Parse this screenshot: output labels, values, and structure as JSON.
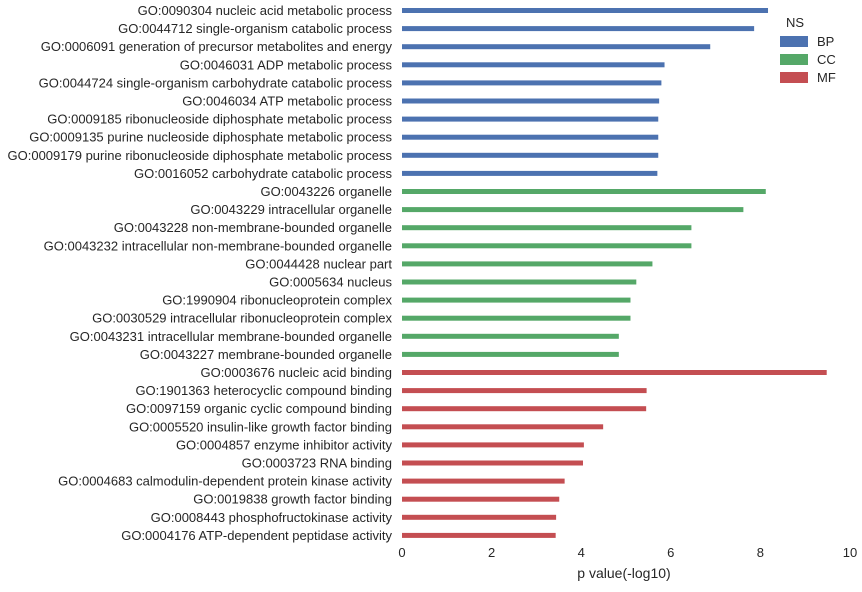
{
  "chart_data": {
    "type": "bar",
    "orientation": "horizontal",
    "xlabel": "p value(-log10)",
    "xlim": [
      0,
      10
    ],
    "xticks": [
      0,
      2,
      4,
      6,
      8,
      10
    ],
    "grid": false,
    "legend": {
      "title": "NS",
      "placement": "top-right",
      "entries": [
        {
          "name": "BP",
          "color": "#4c72b0"
        },
        {
          "name": "CC",
          "color": "#55a868"
        },
        {
          "name": "MF",
          "color": "#c44e52"
        }
      ]
    },
    "categories": [
      "GO:0090304 nucleic acid metabolic process",
      "GO:0044712 single-organism catabolic process",
      "GO:0006091 generation of precursor metabolites and energy",
      "GO:0046031 ADP metabolic process",
      "GO:0044724 single-organism carbohydrate catabolic process",
      "GO:0046034 ATP metabolic process",
      "GO:0009185 ribonucleoside diphosphate metabolic process",
      "GO:0009135 purine nucleoside diphosphate metabolic process",
      "GO:0009179 purine ribonucleoside diphosphate metabolic process",
      "GO:0016052 carbohydrate catabolic process",
      "GO:0043226 organelle",
      "GO:0043229 intracellular organelle",
      "GO:0043228 non-membrane-bounded organelle",
      "GO:0043232 intracellular non-membrane-bounded organelle",
      "GO:0044428 nuclear part",
      "GO:0005634 nucleus",
      "GO:1990904 ribonucleoprotein complex",
      "GO:0030529 intracellular ribonucleoprotein complex",
      "GO:0043231 intracellular membrane-bounded organelle",
      "GO:0043227 membrane-bounded organelle",
      "GO:0003676 nucleic acid binding",
      "GO:1901363 heterocyclic compound binding",
      "GO:0097159 organic cyclic compound binding",
      "GO:0005520 insulin-like growth factor binding",
      "GO:0004857 enzyme inhibitor activity",
      "GO:0003723 RNA binding",
      "GO:0004683 calmodulin-dependent protein kinase activity",
      "GO:0019838 growth factor binding",
      "GO:0008443 phosphofructokinase activity",
      "GO:0004176 ATP-dependent peptidase activity"
    ],
    "values": [
      8.17,
      7.86,
      6.88,
      5.86,
      5.79,
      5.74,
      5.72,
      5.72,
      5.72,
      5.7,
      8.12,
      7.62,
      6.46,
      6.46,
      5.59,
      5.23,
      5.1,
      5.1,
      4.84,
      4.84,
      9.48,
      5.46,
      5.45,
      4.49,
      4.06,
      4.04,
      3.63,
      3.51,
      3.44,
      3.43
    ],
    "groups": [
      "BP",
      "BP",
      "BP",
      "BP",
      "BP",
      "BP",
      "BP",
      "BP",
      "BP",
      "BP",
      "CC",
      "CC",
      "CC",
      "CC",
      "CC",
      "CC",
      "CC",
      "CC",
      "CC",
      "CC",
      "MF",
      "MF",
      "MF",
      "MF",
      "MF",
      "MF",
      "MF",
      "MF",
      "MF",
      "MF"
    ]
  }
}
